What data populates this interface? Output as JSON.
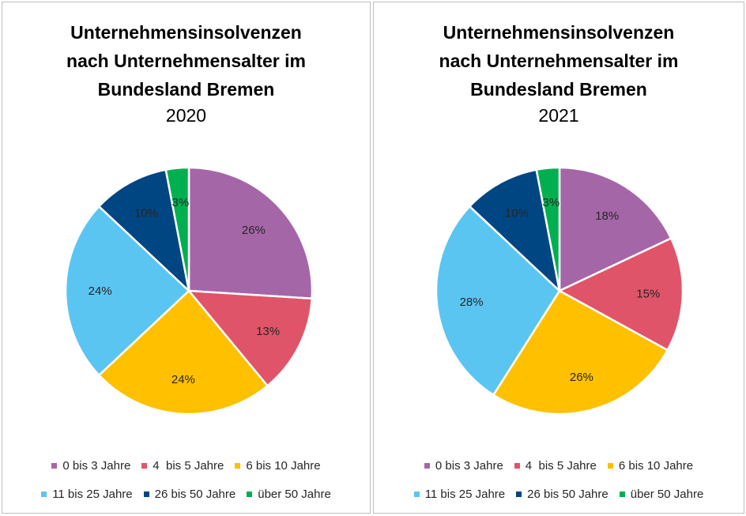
{
  "legend": [
    {
      "label": "0 bis 3 Jahre",
      "color": "#A566A8"
    },
    {
      "label": "4  bis 5 Jahre",
      "color": "#E05469"
    },
    {
      "label": "6 bis 10 Jahre",
      "color": "#FFC000"
    },
    {
      "label": "11 bis 25 Jahre",
      "color": "#5BC5F2"
    },
    {
      "label": "26 bis 50 Jahre",
      "color": "#004683"
    },
    {
      "label": "über 50 Jahre",
      "color": "#00B050"
    }
  ],
  "chart_data": [
    {
      "type": "pie",
      "title": [
        "Unternehmensinsolvenzen",
        "nach Unternehmensalter im",
        "Bundesland Bremen"
      ],
      "subtitle": "2020",
      "categories": [
        "0 bis 3 Jahre",
        "4  bis 5 Jahre",
        "6 bis 10 Jahre",
        "11 bis 25 Jahre",
        "26 bis 50 Jahre",
        "über 50 Jahre"
      ],
      "values": [
        26,
        13,
        24,
        24,
        10,
        3
      ],
      "labels": [
        "26%",
        "13%",
        "24%",
        "24%",
        "10%",
        "3%"
      ],
      "legend_position": "bottom"
    },
    {
      "type": "pie",
      "title": [
        "Unternehmensinsolvenzen",
        "nach Unternehmensalter im",
        "Bundesland Bremen"
      ],
      "subtitle": "2021",
      "categories": [
        "0 bis 3 Jahre",
        "4  bis 5 Jahre",
        "6 bis 10 Jahre",
        "11 bis 25 Jahre",
        "26 bis 50 Jahre",
        "über 50 Jahre"
      ],
      "values": [
        18,
        15,
        26,
        28,
        10,
        3
      ],
      "labels": [
        "18%",
        "15%",
        "26%",
        "28%",
        "10%",
        "3%"
      ],
      "legend_position": "bottom"
    }
  ]
}
